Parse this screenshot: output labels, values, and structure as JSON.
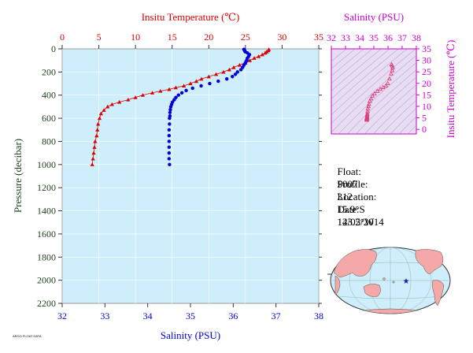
{
  "colors": {
    "temperature": "#dd0000",
    "salinity": "#0000dd",
    "ts_axis": "#cc00cc",
    "ts_points": "#e0407a",
    "plot_background": "#cdeefa",
    "axis_text": "#333333",
    "pressure_label": "#224422",
    "land": "#f4a8a8",
    "ocean": "#cdeefa",
    "float_marker": "#1a1aa0"
  },
  "info": {
    "float_label": "Float:",
    "float_value": "5007",
    "profile_label": "Profile:",
    "profile_value": "312",
    "location_label": "Location:",
    "location_lat": "15.9°S",
    "location_lon": "143.2°W",
    "date_label": "Date:",
    "date_value": "12/05/2014"
  },
  "footer": {
    "credit": "ARGO FLOAT DATA"
  },
  "chart_data": [
    {
      "type": "scatter",
      "panel": "profile",
      "xlabel_top": "Insitu Temperature (℃)",
      "xlabel_bottom": "Salinity (PSU)",
      "ylabel": "Pressure (decibar)",
      "temperature_range": [
        0,
        35
      ],
      "temperature_ticks": [
        0,
        5,
        10,
        15,
        20,
        25,
        30,
        35
      ],
      "salinity_range": [
        32,
        38
      ],
      "salinity_ticks": [
        32,
        33,
        34,
        35,
        36,
        37,
        38
      ],
      "pressure_range": [
        0,
        2200
      ],
      "pressure_ticks": [
        0,
        200,
        400,
        600,
        800,
        1000,
        1200,
        1400,
        1600,
        1800,
        2000,
        2200
      ],
      "pressure_inverted": true,
      "series": [
        {
          "name": "Insitu Temperature",
          "marker": "triangle",
          "axis": "top",
          "points": [
            [
              28.2,
              5
            ],
            [
              28.1,
              15
            ],
            [
              27.9,
              25
            ],
            [
              27.7,
              35
            ],
            [
              27.3,
              50
            ],
            [
              26.8,
              65
            ],
            [
              26.2,
              80
            ],
            [
              25.6,
              100
            ],
            [
              25.0,
              120
            ],
            [
              24.2,
              140
            ],
            [
              23.4,
              160
            ],
            [
              22.8,
              180
            ],
            [
              22.0,
              200
            ],
            [
              21.0,
              220
            ],
            [
              20.0,
              240
            ],
            [
              19.0,
              260
            ],
            [
              18.3,
              280
            ],
            [
              17.5,
              300
            ],
            [
              16.6,
              320
            ],
            [
              15.5,
              335
            ],
            [
              14.6,
              350
            ],
            [
              13.4,
              365
            ],
            [
              12.3,
              380
            ],
            [
              11.0,
              400
            ],
            [
              10.0,
              420
            ],
            [
              9.0,
              440
            ],
            [
              7.8,
              460
            ],
            [
              6.8,
              480
            ],
            [
              6.2,
              500
            ],
            [
              5.7,
              530
            ],
            [
              5.3,
              560
            ],
            [
              5.1,
              600
            ],
            [
              4.9,
              650
            ],
            [
              4.8,
              700
            ],
            [
              4.7,
              750
            ],
            [
              4.5,
              800
            ],
            [
              4.4,
              850
            ],
            [
              4.3,
              900
            ],
            [
              4.2,
              950
            ],
            [
              4.1,
              1000
            ]
          ]
        },
        {
          "name": "Salinity",
          "marker": "circle",
          "axis": "bottom",
          "points": [
            [
              36.25,
              5
            ],
            [
              36.27,
              15
            ],
            [
              36.28,
              25
            ],
            [
              36.33,
              35
            ],
            [
              36.38,
              50
            ],
            [
              36.36,
              65
            ],
            [
              36.33,
              80
            ],
            [
              36.32,
              95
            ],
            [
              36.3,
              110
            ],
            [
              36.28,
              125
            ],
            [
              36.25,
              140
            ],
            [
              36.22,
              160
            ],
            [
              36.18,
              180
            ],
            [
              36.1,
              200
            ],
            [
              36.05,
              220
            ],
            [
              35.98,
              240
            ],
            [
              35.85,
              260
            ],
            [
              35.65,
              280
            ],
            [
              35.45,
              300
            ],
            [
              35.25,
              320
            ],
            [
              35.05,
              340
            ],
            [
              34.9,
              360
            ],
            [
              34.8,
              380
            ],
            [
              34.72,
              400
            ],
            [
              34.66,
              420
            ],
            [
              34.62,
              440
            ],
            [
              34.58,
              460
            ],
            [
              34.56,
              480
            ],
            [
              34.54,
              500
            ],
            [
              34.53,
              525
            ],
            [
              34.52,
              550
            ],
            [
              34.52,
              580
            ],
            [
              34.51,
              600
            ],
            [
              34.51,
              650
            ],
            [
              34.5,
              700
            ],
            [
              34.5,
              750
            ],
            [
              34.5,
              800
            ],
            [
              34.5,
              850
            ],
            [
              34.5,
              900
            ],
            [
              34.5,
              950
            ],
            [
              34.51,
              1000
            ]
          ]
        }
      ]
    },
    {
      "type": "scatter",
      "panel": "ts_diagram",
      "xlabel": "Salinity (PSU)",
      "ylabel": "Insitu Temperature (℃)",
      "xlim": [
        32,
        38
      ],
      "xticks": [
        32,
        33,
        34,
        35,
        36,
        37,
        38
      ],
      "ylim": [
        -2,
        35
      ],
      "yticks": [
        0,
        5,
        10,
        15,
        20,
        25,
        30,
        35
      ],
      "marker": "triangle-outline",
      "points": [
        [
          36.25,
          28.2
        ],
        [
          36.3,
          27.7
        ],
        [
          36.33,
          26.8
        ],
        [
          36.3,
          25.6
        ],
        [
          36.22,
          24.2
        ],
        [
          36.1,
          22.0
        ],
        [
          35.98,
          20.0
        ],
        [
          35.85,
          19.0
        ],
        [
          35.65,
          18.3
        ],
        [
          35.45,
          17.5
        ],
        [
          35.25,
          16.6
        ],
        [
          35.05,
          15.5
        ],
        [
          34.9,
          14.6
        ],
        [
          34.8,
          13.4
        ],
        [
          34.72,
          12.3
        ],
        [
          34.66,
          11.0
        ],
        [
          34.62,
          10.0
        ],
        [
          34.58,
          9.0
        ],
        [
          34.56,
          7.8
        ],
        [
          34.54,
          6.8
        ],
        [
          34.53,
          6.2
        ],
        [
          34.52,
          5.7
        ],
        [
          34.52,
          5.3
        ],
        [
          34.51,
          5.1
        ],
        [
          34.51,
          4.9
        ],
        [
          34.5,
          4.7
        ],
        [
          34.5,
          4.5
        ],
        [
          34.5,
          4.3
        ],
        [
          34.51,
          4.1
        ]
      ]
    }
  ]
}
